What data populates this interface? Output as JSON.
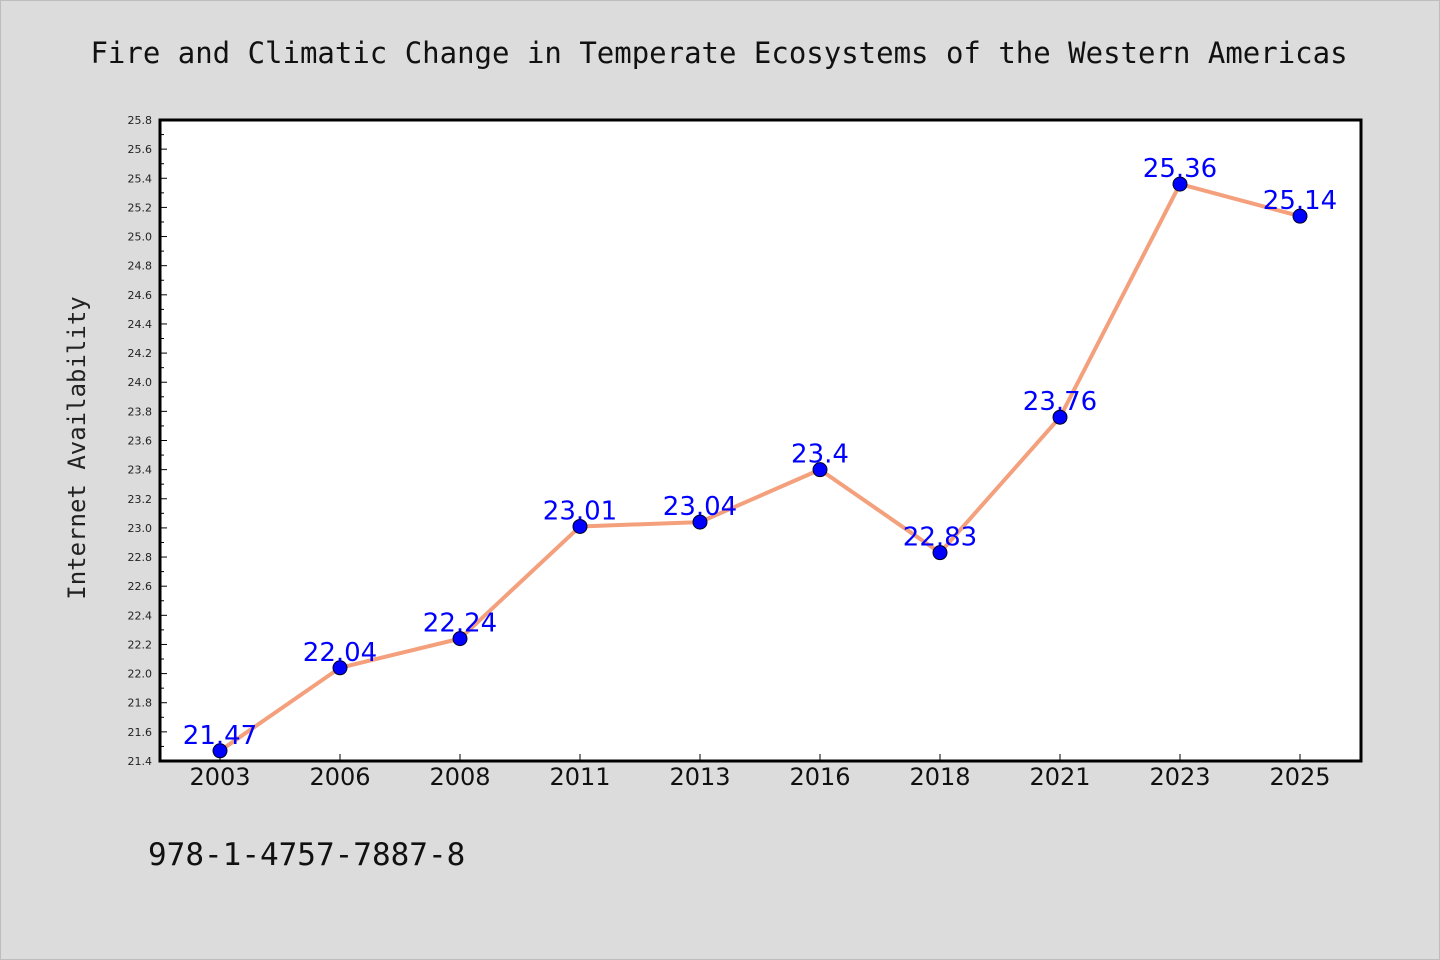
{
  "chart_data": {
    "type": "line",
    "title": "Fire and Climatic Change in Temperate Ecosystems of the Western Americas",
    "xlabel": "",
    "ylabel": "Internet Availability",
    "categories": [
      "2003",
      "2006",
      "2008",
      "2011",
      "2013",
      "2016",
      "2018",
      "2021",
      "2023",
      "2025"
    ],
    "series": [
      {
        "values": [
          21.47,
          22.04,
          22.24,
          23.01,
          23.04,
          23.4,
          22.83,
          23.76,
          25.36,
          25.14
        ]
      }
    ],
    "data_labels": [
      "21.47",
      "22.04",
      "22.24",
      "23.01",
      "23.04",
      "23.4",
      "22.83",
      "23.76",
      "25.36",
      "25.14"
    ],
    "ylim": [
      21.4,
      25.8
    ],
    "yticks": [
      "21.4",
      "21.6",
      "21.8",
      "22.0",
      "22.2",
      "22.4",
      "22.6",
      "22.8",
      "23.0",
      "23.2",
      "23.4",
      "23.6",
      "23.8",
      "24.0",
      "24.2",
      "24.4",
      "24.6",
      "24.8",
      "25.0",
      "25.2",
      "25.4",
      "25.6",
      "25.8"
    ],
    "grid": false,
    "legend": "none",
    "colors": {
      "line": "#f4a07c",
      "marker": "#0000ff",
      "label": "#0000ff",
      "background": "#dcdcdc",
      "plot_background": "#ffffff"
    }
  },
  "footer": {
    "isbn": "978-1-4757-7887-8"
  }
}
